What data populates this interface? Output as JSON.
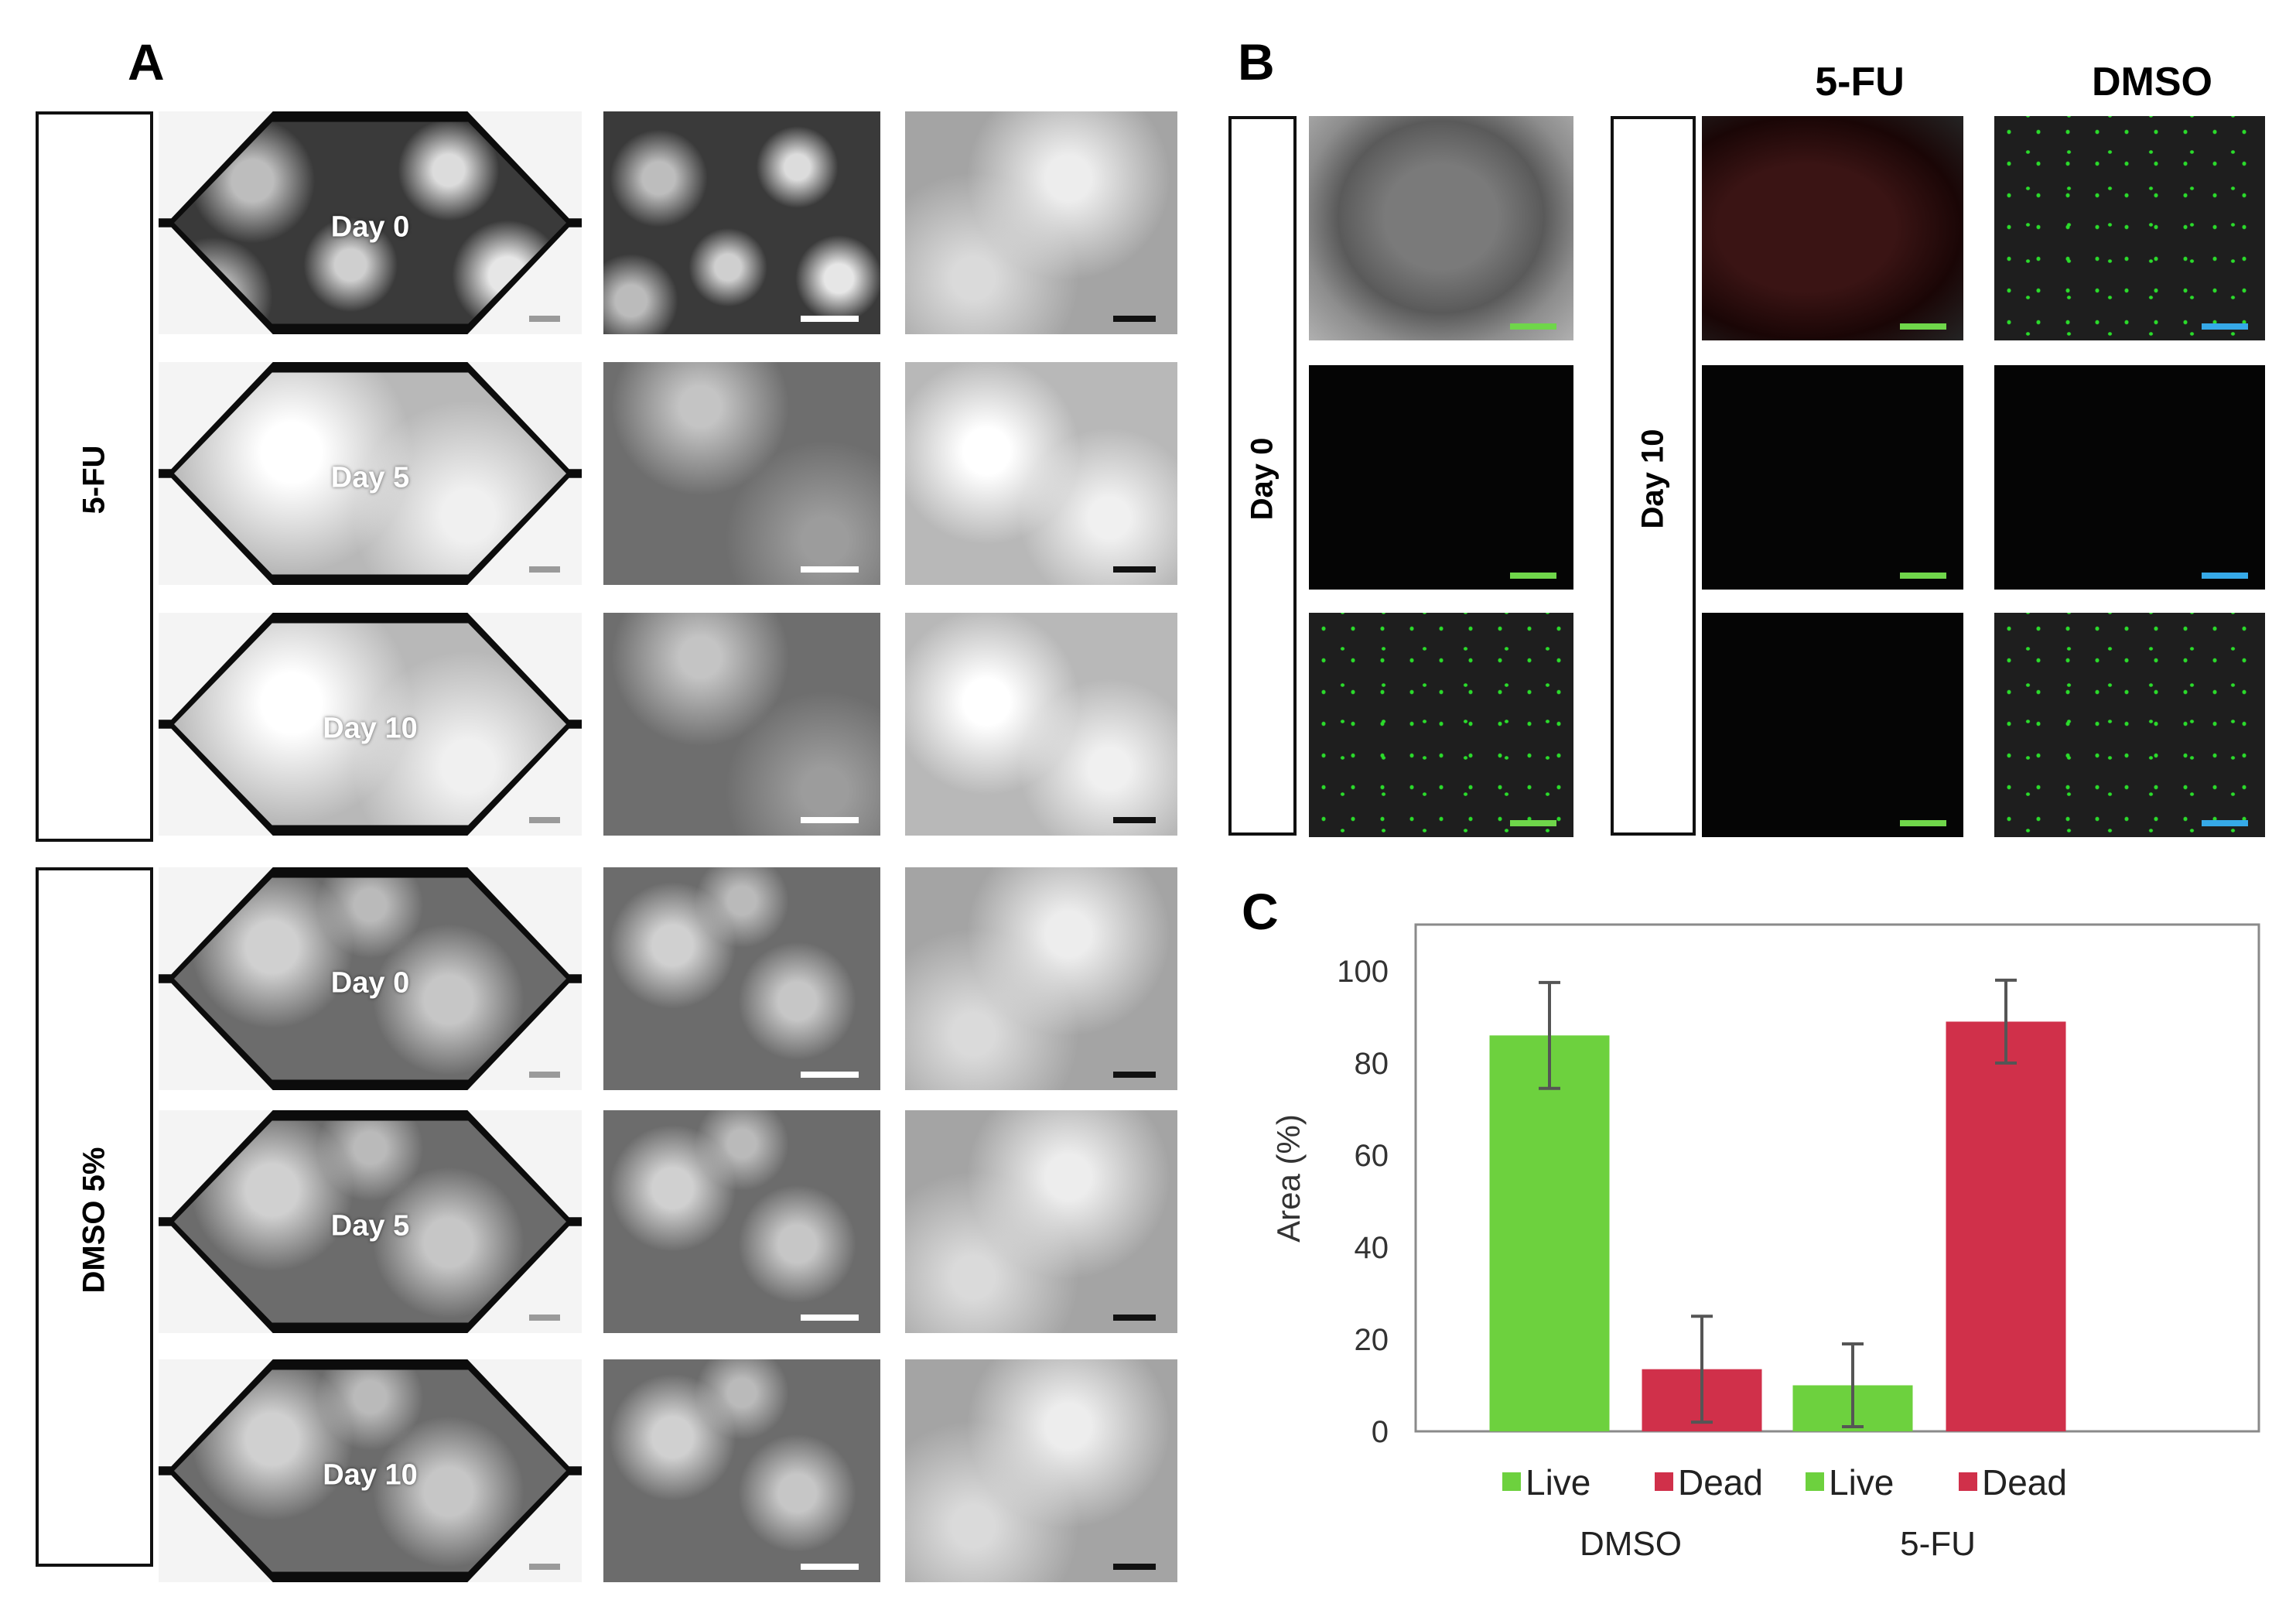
{
  "panels": {
    "a": "A",
    "b": "B",
    "c": "C"
  },
  "panel_a": {
    "groups": [
      {
        "label": "5-FU",
        "days": [
          "Day 0",
          "Day 5",
          "Day 10"
        ]
      },
      {
        "label": "DMSO 5%",
        "days": [
          "Day 0",
          "Day 5",
          "Day 10"
        ]
      }
    ],
    "scale_bar_color_diamond": "#9a9a9a",
    "scale_bar_color_zoom": "#ffffff",
    "scale_bar_color_dark": "#111111"
  },
  "panel_b": {
    "col_headers": [
      "5-FU",
      "DMSO"
    ],
    "row_labels": [
      "Day 0",
      "Day 10"
    ],
    "scale_bar_green": "#6fd64a",
    "scale_bar_blue": "#36a9e8"
  },
  "chart_data": {
    "type": "bar",
    "ylabel": "Area (%)",
    "ylim": [
      0,
      100
    ],
    "yticks": [
      0,
      20,
      40,
      60,
      80,
      100
    ],
    "groups": [
      "DMSO",
      "5-FU"
    ],
    "bars": [
      {
        "group": "DMSO",
        "series": "Live",
        "value": 86,
        "error": 11.5,
        "color": "#6dd13e"
      },
      {
        "group": "DMSO",
        "series": "Dead",
        "value": 13.5,
        "error": 11.5,
        "color": "#d0304a"
      },
      {
        "group": "5-FU",
        "series": "Live",
        "value": 10,
        "error": 9,
        "color": "#6dd13e"
      },
      {
        "group": "5-FU",
        "series": "Dead",
        "value": 89,
        "error": 9,
        "color": "#d0304a"
      }
    ],
    "legend": [
      "Live",
      "Dead",
      "Live",
      "Dead"
    ],
    "grid": false
  }
}
